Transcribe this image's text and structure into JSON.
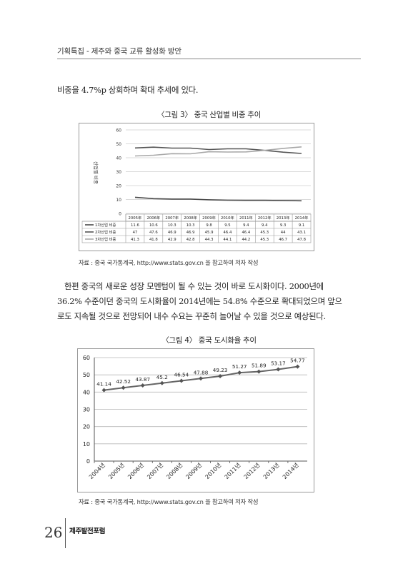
{
  "header": {
    "running_title": "기획특집 - 제주와 중국 교류 활성화 방안"
  },
  "body_text": {
    "line_top": "비중을 4.7%p 상회하며 확대 추세에 있다.",
    "paragraph_lines": [
      "한편 중국의 새로운 성장 모멘텀이 될 수 있는 것이 바로 도시화이다. 2000년에",
      "36.2% 수준이던 중국의 도시화율이 2014년에는 54.8% 수준으로 확대되었으며 앞으",
      "로도 지속될 것으로 전망되어 내수 수요는 꾸준히 늘어날 수 있을 것으로 예상된다."
    ]
  },
  "figure3": {
    "title": "〈그림 3〉 중국 산업별 비중 추이",
    "source": "자료 : 중국 국가통계국, http://www.stats.gov.cn 을 참고하여 저자 작성"
  },
  "figure4": {
    "title": "〈그림 4〉 중국 도시화율 추이",
    "source": "자료 : 중국 국가통계국, http://www.stats.gov.cn 을 참고하여 저자 작성"
  },
  "footer": {
    "page_number": "26",
    "publication": "제주발전포럼"
  },
  "chart_data": [
    {
      "type": "line",
      "id": "figure3",
      "categories": [
        "2005年",
        "2006年",
        "2007年",
        "2008年",
        "2009年",
        "2010年",
        "2011年",
        "2012年",
        "2013年",
        "2014年"
      ],
      "ylabel": "산업별 비중",
      "ylim": [
        0,
        60
      ],
      "yticks": [
        0,
        10,
        20,
        30,
        40,
        50,
        60
      ],
      "grid": true,
      "legend": "data-table-below",
      "series": [
        {
          "name": "1차산업 비중",
          "color": "#4a4a4a",
          "values": [
            11.6,
            10.6,
            10.3,
            10.3,
            9.8,
            9.5,
            9.4,
            9.4,
            9.3,
            9.1
          ]
        },
        {
          "name": "2차산업 비중",
          "color": "#555555",
          "values": [
            47,
            47.6,
            46.9,
            46.9,
            45.9,
            46.4,
            46.4,
            45.3,
            44,
            43.1
          ]
        },
        {
          "name": "3차산업 비중",
          "color": "#a8a8a8",
          "values": [
            41.3,
            41.8,
            42.9,
            42.8,
            44.3,
            44.1,
            44.2,
            45.3,
            46.7,
            47.8
          ]
        }
      ]
    },
    {
      "type": "line",
      "id": "figure4",
      "categories": [
        "2004년",
        "2005년",
        "2006년",
        "2007년",
        "2008년",
        "2009년",
        "2010년",
        "2011년",
        "2012년",
        "2013년",
        "2014년"
      ],
      "ylim": [
        0,
        60
      ],
      "yticks": [
        0,
        10,
        20,
        30,
        40,
        50,
        60
      ],
      "grid": true,
      "series": [
        {
          "color": "#666666",
          "values": [
            41.14,
            42.52,
            43.87,
            45.2,
            46.54,
            47.88,
            49.23,
            51.27,
            51.89,
            53.17,
            54.77
          ]
        }
      ]
    }
  ]
}
